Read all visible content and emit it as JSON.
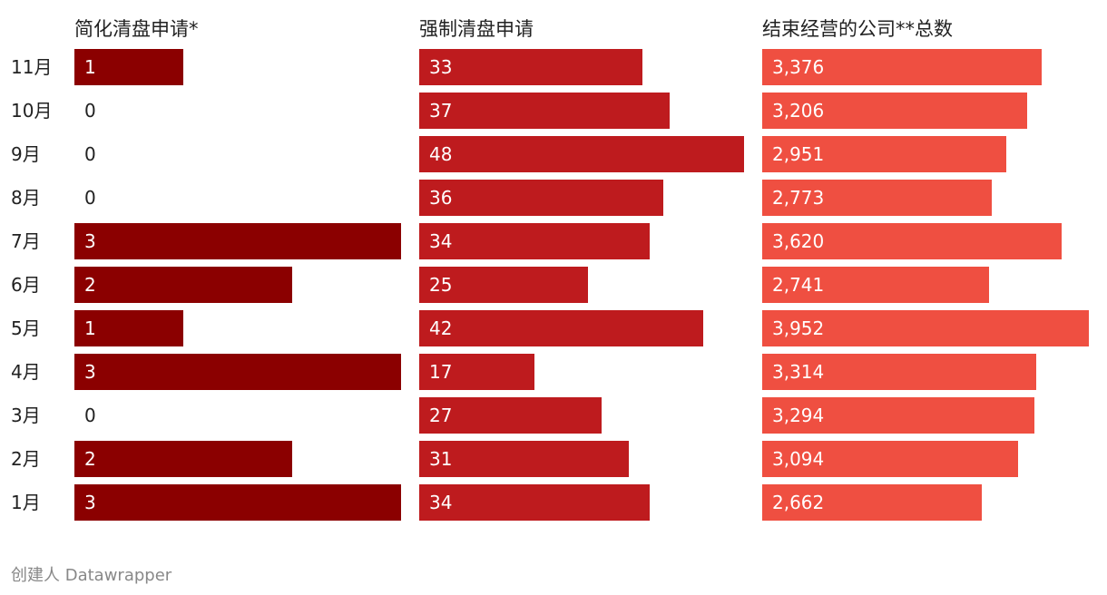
{
  "chart_data": {
    "type": "bar",
    "orientation": "horizontal",
    "categories": [
      "11月",
      "10月",
      "9月",
      "8月",
      "7月",
      "6月",
      "5月",
      "4月",
      "3月",
      "2月",
      "1月"
    ],
    "series": [
      {
        "name": "简化清盘申请*",
        "color": "#8b0000",
        "values": [
          1,
          0,
          0,
          0,
          3,
          2,
          1,
          3,
          0,
          2,
          3
        ]
      },
      {
        "name": "强制清盘申请",
        "color": "#be1b1e",
        "values": [
          33,
          37,
          48,
          36,
          34,
          25,
          42,
          17,
          27,
          31,
          34
        ]
      },
      {
        "name": "结束经营的公司**总数",
        "color": "#ef4f41",
        "values": [
          3376,
          3206,
          2951,
          2773,
          3620,
          2741,
          3952,
          3314,
          3294,
          3094,
          2662
        ]
      }
    ],
    "grid": false,
    "legend": "none"
  },
  "footer": "创建人 Datawrapper"
}
